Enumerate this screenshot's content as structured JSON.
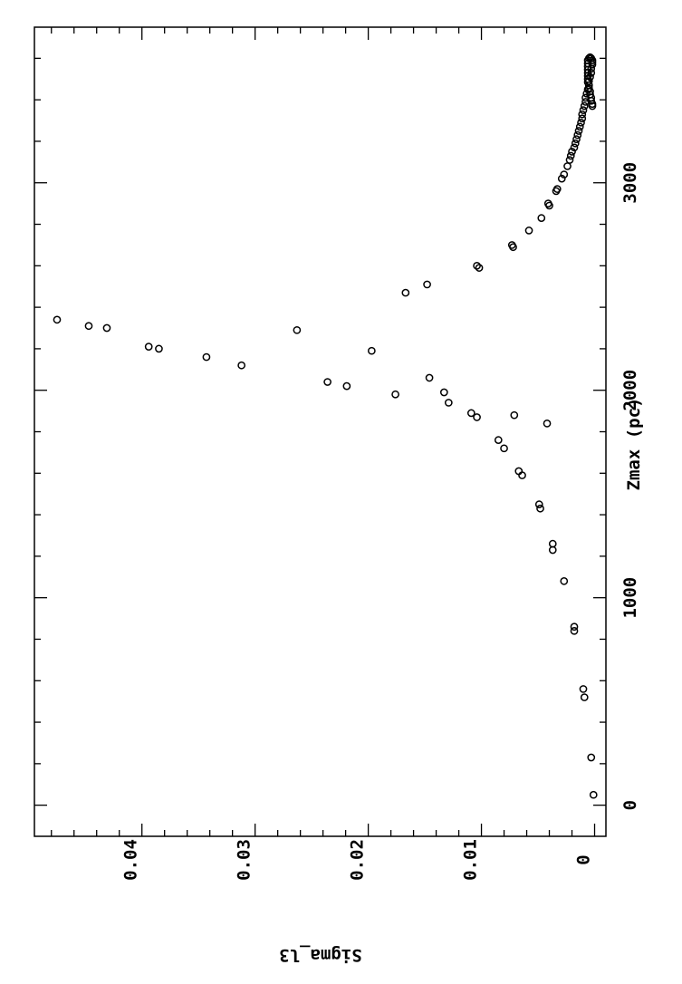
{
  "chart_data": {
    "type": "scatter",
    "title": "",
    "xlabel": "Zmax (pc)",
    "ylabel": "Sigma_l3",
    "xlim": [
      -150,
      3750
    ],
    "ylim": [
      -0.001,
      0.0495
    ],
    "xticks": [
      0,
      1000,
      2000,
      3000
    ],
    "xtick_labels": [
      "0",
      "1000",
      "2000",
      "3000"
    ],
    "yticks": [
      0,
      0.01,
      0.02,
      0.03,
      0.04
    ],
    "ytick_labels": [
      "0",
      "0.01",
      "0.02",
      "0.03",
      "0.04"
    ],
    "grid": false,
    "legend": "none",
    "marker": "open-circle",
    "points": [
      [
        50,
        0.0001
      ],
      [
        230,
        0.0003
      ],
      [
        520,
        0.0009
      ],
      [
        560,
        0.001
      ],
      [
        840,
        0.0018
      ],
      [
        860,
        0.0018
      ],
      [
        1080,
        0.0027
      ],
      [
        1230,
        0.0037
      ],
      [
        1260,
        0.0037
      ],
      [
        1430,
        0.0048
      ],
      [
        1450,
        0.0049
      ],
      [
        1590,
        0.0064
      ],
      [
        1610,
        0.0067
      ],
      [
        1720,
        0.008
      ],
      [
        1760,
        0.0085
      ],
      [
        1840,
        0.0042
      ],
      [
        1880,
        0.0071
      ],
      [
        1870,
        0.0104
      ],
      [
        1890,
        0.0109
      ],
      [
        1940,
        0.0129
      ],
      [
        1990,
        0.0133
      ],
      [
        2060,
        0.0146
      ],
      [
        1980,
        0.0176
      ],
      [
        2020,
        0.0219
      ],
      [
        2040,
        0.0236
      ],
      [
        2120,
        0.0312
      ],
      [
        2160,
        0.0343
      ],
      [
        2200,
        0.0385
      ],
      [
        2210,
        0.0394
      ],
      [
        2190,
        0.0197
      ],
      [
        2300,
        0.0431
      ],
      [
        2310,
        0.0447
      ],
      [
        2340,
        0.0475
      ],
      [
        2290,
        0.0263
      ],
      [
        2470,
        0.0167
      ],
      [
        2510,
        0.0148
      ],
      [
        2590,
        0.0102
      ],
      [
        2600,
        0.0104
      ],
      [
        2690,
        0.0072
      ],
      [
        2700,
        0.0073
      ],
      [
        2770,
        0.0058
      ],
      [
        2830,
        0.0047
      ],
      [
        2890,
        0.004
      ],
      [
        2900,
        0.0041
      ],
      [
        2960,
        0.0034
      ],
      [
        2970,
        0.0033
      ],
      [
        3020,
        0.0029
      ],
      [
        3040,
        0.0027
      ],
      [
        3080,
        0.0024
      ],
      [
        3110,
        0.0022
      ],
      [
        3130,
        0.0021
      ],
      [
        3150,
        0.002
      ],
      [
        3170,
        0.0018
      ],
      [
        3190,
        0.0017
      ],
      [
        3210,
        0.0016
      ],
      [
        3230,
        0.0015
      ],
      [
        3250,
        0.0014
      ],
      [
        3270,
        0.0013
      ],
      [
        3290,
        0.0012
      ],
      [
        3310,
        0.0011
      ],
      [
        3330,
        0.0011
      ],
      [
        3350,
        0.001
      ],
      [
        3370,
        0.0009
      ],
      [
        3390,
        0.0008
      ],
      [
        3410,
        0.0008
      ],
      [
        3430,
        0.0007
      ],
      [
        3450,
        0.0006
      ],
      [
        3470,
        0.0005
      ],
      [
        3490,
        0.0005
      ],
      [
        3510,
        0.0004
      ],
      [
        3530,
        0.0003
      ],
      [
        3550,
        0.0003
      ],
      [
        3570,
        0.0002
      ],
      [
        3580,
        0.0002
      ],
      [
        3590,
        0.0002
      ],
      [
        3600,
        0.0003
      ],
      [
        3605,
        0.0004
      ],
      [
        3600,
        0.0005
      ],
      [
        3590,
        0.0006
      ],
      [
        3575,
        0.0006
      ],
      [
        3560,
        0.0006
      ],
      [
        3545,
        0.0006
      ],
      [
        3530,
        0.0006
      ],
      [
        3515,
        0.0006
      ],
      [
        3500,
        0.0006
      ],
      [
        3485,
        0.0006
      ],
      [
        3470,
        0.0005
      ],
      [
        3455,
        0.0005
      ],
      [
        3440,
        0.0004
      ],
      [
        3425,
        0.0004
      ],
      [
        3410,
        0.0003
      ],
      [
        3395,
        0.0003
      ],
      [
        3380,
        0.0002
      ],
      [
        3370,
        0.0002
      ]
    ]
  }
}
